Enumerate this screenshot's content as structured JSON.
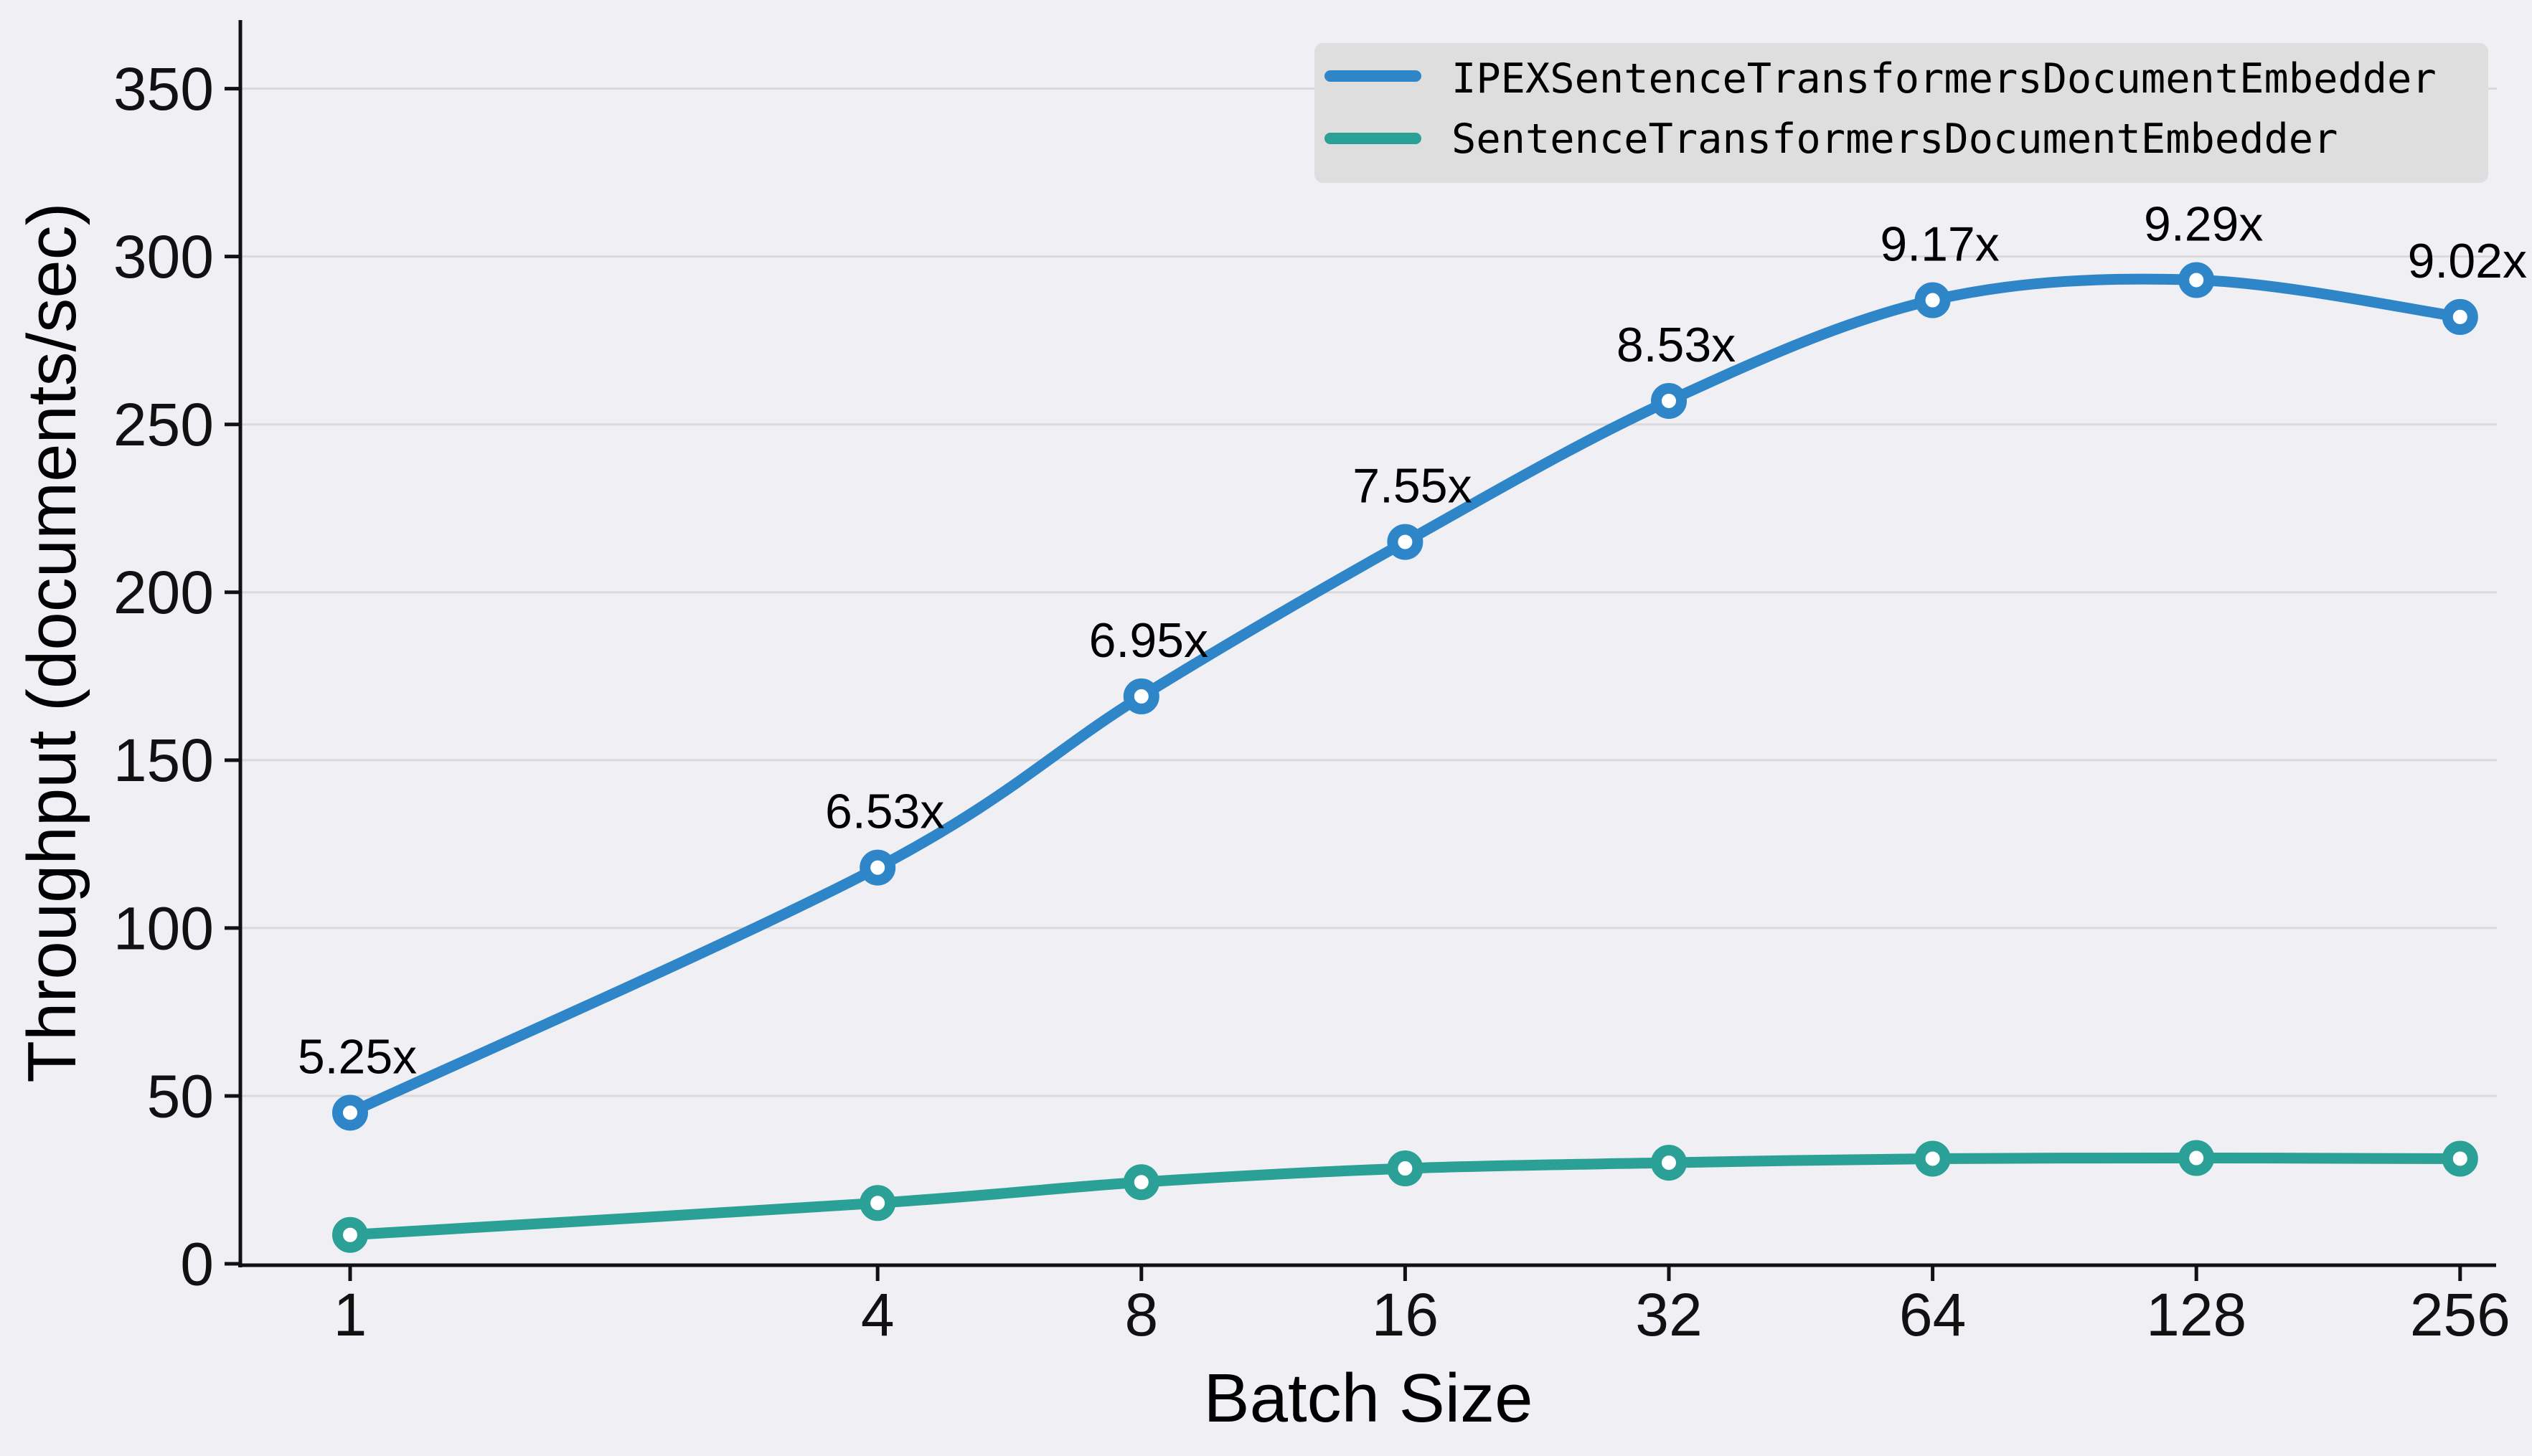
{
  "chart_data": {
    "type": "line",
    "title": "",
    "xlabel": "Batch Size",
    "ylabel": "Throughput (documents/sec)",
    "x_scale": "log2",
    "categories": [
      1,
      4,
      8,
      16,
      32,
      64,
      128,
      256
    ],
    "xtick_labels": [
      "1",
      "4",
      "8",
      "16",
      "32",
      "64",
      "128",
      "256"
    ],
    "yticks": [
      0,
      50,
      100,
      150,
      200,
      250,
      300,
      350
    ],
    "ylim": [
      0,
      370
    ],
    "grid": "horizontal",
    "colors": {
      "background": "#f0f0f4",
      "gridline": "#d9d9de",
      "axis": "#111111",
      "legend_background": "#dedede",
      "marker_fill": "#ffffff"
    },
    "legend": {
      "position": "top-right"
    },
    "series": [
      {
        "name": "IPEXSentenceTransformersDocumentEmbedder",
        "color": "#2e86c8",
        "values": [
          45,
          118,
          169,
          215,
          257,
          287,
          293,
          282
        ],
        "annotations": [
          "5.25x",
          "6.53x",
          "6.95x",
          "7.55x",
          "8.53x",
          "9.17x",
          "9.29x",
          "9.02x"
        ]
      },
      {
        "name": "SentenceTransformersDocumentEmbedder",
        "color": "#2aa096",
        "values": [
          8.6,
          18.1,
          24.3,
          28.4,
          30.1,
          31.3,
          31.5,
          31.3
        ],
        "annotations": []
      }
    ]
  }
}
